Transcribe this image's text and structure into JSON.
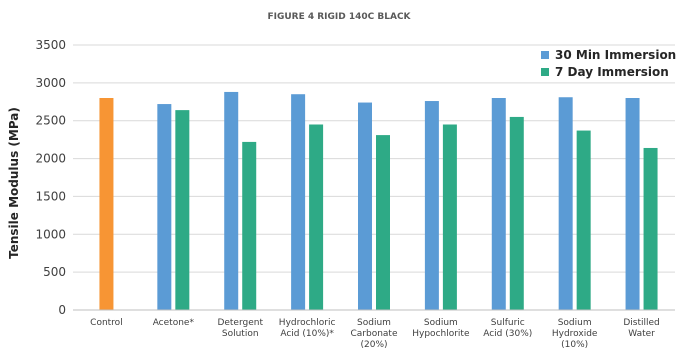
{
  "chart_data": {
    "type": "bar",
    "title": "FIGURE 4 RIGID 140C BLACK",
    "ylabel": "Tensile Modulus (MPa)",
    "xlabel": "",
    "ylim": [
      0,
      3500
    ],
    "yticks": [
      "0",
      "500",
      "1000",
      "1500",
      "2000",
      "2500",
      "3000",
      "3500"
    ],
    "ytick_values": [
      0,
      500,
      1000,
      1500,
      2000,
      2500,
      3000,
      3500
    ],
    "grid": true,
    "legend_position": "top-right",
    "categories": [
      [
        "Control"
      ],
      [
        "Acetone*"
      ],
      [
        "Detergent",
        "Solution"
      ],
      [
        "Hydrochloric",
        "Acid (10%)*"
      ],
      [
        "Sodium",
        "Carbonate",
        "(20%)"
      ],
      [
        "Sodium",
        "Hypochlorite"
      ],
      [
        "Sulfuric",
        "Acid (30%)"
      ],
      [
        "Sodium",
        "Hydroxide",
        "(10%)"
      ],
      [
        "Distilled",
        "Water"
      ]
    ],
    "control": {
      "value": 2800,
      "color": "#f79534"
    },
    "series": [
      {
        "name": "30 Min Immersion",
        "color": "#5b9bd5",
        "values": [
          null,
          2720,
          2880,
          2850,
          2740,
          2760,
          2800,
          2810,
          2800
        ]
      },
      {
        "name": "7 Day Immersion",
        "color": "#2eaa86",
        "values": [
          null,
          2640,
          2220,
          2450,
          2310,
          2450,
          2550,
          2370,
          2140
        ]
      }
    ]
  }
}
